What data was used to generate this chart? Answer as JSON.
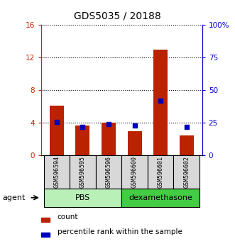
{
  "title": "GDS5035 / 20188",
  "samples": [
    "GSM596594",
    "GSM596595",
    "GSM596596",
    "GSM596600",
    "GSM596601",
    "GSM596602"
  ],
  "red_values": [
    6.1,
    3.7,
    4.0,
    3.0,
    13.0,
    2.5
  ],
  "blue_values": [
    26,
    22,
    24,
    23,
    42,
    22
  ],
  "groups": [
    {
      "label": "PBS",
      "color": "#90EE90"
    },
    {
      "label": "dexamethasone",
      "color": "#3CB371"
    }
  ],
  "ylim_left": [
    0,
    16
  ],
  "ylim_right": [
    0,
    100
  ],
  "yticks_left": [
    0,
    4,
    8,
    12,
    16
  ],
  "ytick_labels_left": [
    "0",
    "4",
    "8",
    "12",
    "16"
  ],
  "yticks_right": [
    0,
    25,
    50,
    75,
    100
  ],
  "ytick_labels_right": [
    "0",
    "25",
    "50",
    "75",
    "100%"
  ],
  "red_color": "#BB2200",
  "blue_color": "#0000BB",
  "bar_width": 0.55,
  "legend_red": "count",
  "legend_blue": "percentile rank within the sample",
  "left_axis_color": "#CC2200",
  "right_axis_color": "#0000CC",
  "bg_color": "#d8d8d8",
  "pbs_color": "#b8f0b8",
  "dex_color": "#44cc44"
}
